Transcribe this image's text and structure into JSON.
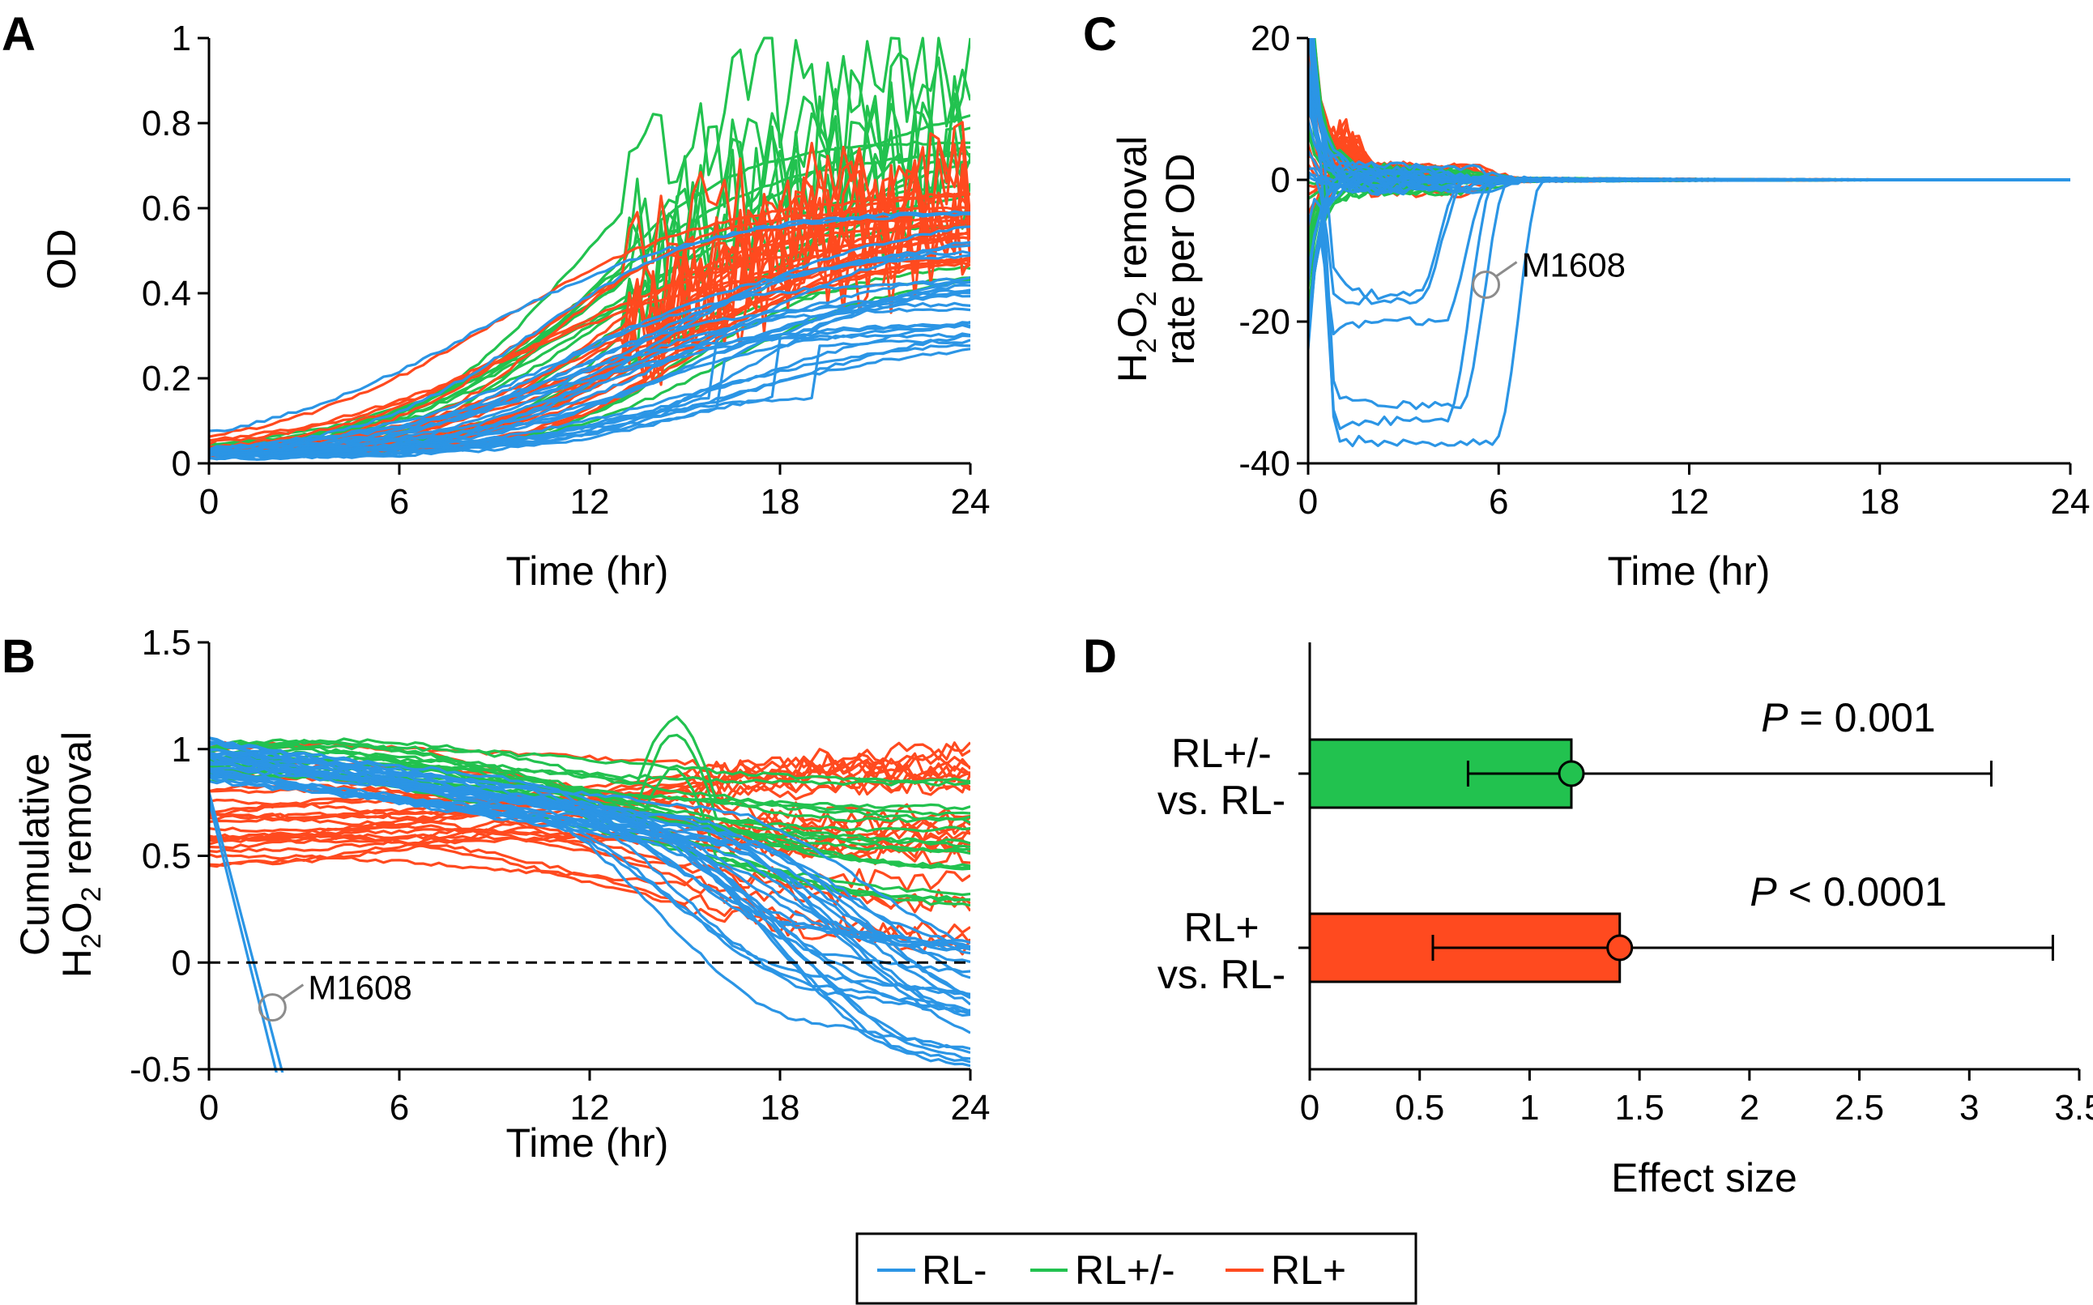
{
  "colors": {
    "rl_minus": "#2b95e5",
    "rl_mix": "#22c24f",
    "rl_plus": "#ff4a1f",
    "axis": "#000000",
    "callout": "#8c8c8c"
  },
  "legend": {
    "entries": [
      "RL-",
      "RL+/-",
      "RL+"
    ]
  },
  "panels": {
    "A": {
      "letter": "A",
      "xlabel": "Time (hr)",
      "ylabel": "OD"
    },
    "B": {
      "letter": "B",
      "xlabel": "Time (hr)",
      "ylabel_line1": "Cumulative",
      "ylabel_line2": "H",
      "ylabel_sub1": "2",
      "ylabel_mid": "O",
      "ylabel_sub2": "2",
      "ylabel_tail": " removal",
      "callout": "M1608"
    },
    "C": {
      "letter": "C",
      "xlabel": "Time (hr)",
      "ylabel_line1_h": "H",
      "ylabel_line1_sub1": "2",
      "ylabel_line1_o": "O",
      "ylabel_line1_sub2": "2",
      "ylabel_line1_tail": " removal",
      "ylabel_line2": "rate per OD",
      "callout": "M1608"
    },
    "D": {
      "letter": "D",
      "xlabel": "Effect size"
    }
  },
  "chart_data": [
    {
      "panel": "A",
      "type": "line",
      "xlim": [
        0,
        24
      ],
      "ylim": [
        0,
        1
      ],
      "x_ticks": [
        "0",
        "6",
        "12",
        "18",
        "24"
      ],
      "y_ticks": [
        "0",
        "0.2",
        "0.4",
        "0.6",
        "0.8",
        "1"
      ],
      "series": [
        {
          "name": "RL-",
          "curves": 26,
          "x": [
            0,
            3,
            6,
            9,
            12,
            15,
            18,
            21,
            24
          ],
          "y_range_at_24": [
            0.28,
            0.6
          ]
        },
        {
          "name": "RL+/-",
          "curves": 18,
          "x": [
            0,
            3,
            6,
            9,
            12,
            15,
            18,
            21,
            24
          ],
          "y_range_at_24": [
            0.42,
            0.92
          ]
        },
        {
          "name": "RL+",
          "curves": 26,
          "x": [
            0,
            3,
            6,
            9,
            12,
            15,
            18,
            21,
            24
          ],
          "y_range_at_24": [
            0.45,
            0.65
          ]
        }
      ]
    },
    {
      "panel": "B",
      "type": "line",
      "xlim": [
        0,
        24
      ],
      "ylim": [
        -0.5,
        1.5
      ],
      "x_ticks": [
        "0",
        "6",
        "12",
        "18",
        "24"
      ],
      "y_ticks": [
        "-0.5",
        "0",
        "0.5",
        "1",
        "1.5"
      ],
      "reference_line": 0,
      "series": [
        {
          "name": "RL-",
          "curves": 26,
          "y_range_at_0": [
            0.85,
            1.05
          ],
          "y_range_at_24": [
            -0.5,
            0.1
          ]
        },
        {
          "name": "RL+/-",
          "curves": 18,
          "y_range_at_0": [
            0.85,
            1.05
          ],
          "y_range_at_24": [
            0.2,
            0.95
          ]
        },
        {
          "name": "RL+",
          "curves": 26,
          "y_range_at_0": [
            0.45,
            1.05
          ],
          "y_range_at_24": [
            0.0,
            1.05
          ]
        }
      ]
    },
    {
      "panel": "C",
      "type": "line",
      "xlim": [
        0,
        24
      ],
      "ylim": [
        -40,
        20
      ],
      "x_ticks": [
        "0",
        "6",
        "12",
        "18",
        "24"
      ],
      "y_ticks": [
        "-40",
        "-20",
        "0",
        "20"
      ],
      "series": [
        {
          "name": "RL-",
          "curves": 26,
          "min_value": -40,
          "settles_to": 0
        },
        {
          "name": "RL+/-",
          "curves": 18,
          "settles_to": 0
        },
        {
          "name": "RL+",
          "curves": 26,
          "settles_to": 0
        }
      ]
    },
    {
      "panel": "D",
      "type": "bar",
      "orientation": "horizontal",
      "xlim": [
        0,
        3.5
      ],
      "x_ticks": [
        "0",
        "0.5",
        "1",
        "1.5",
        "2",
        "2.5",
        "3",
        "3.5"
      ],
      "categories": [
        {
          "label_line1": "RL+/-",
          "label_line2": "vs. RL-",
          "value": 1.19,
          "ci": [
            0.72,
            3.1
          ],
          "p_italic": "P",
          "p_rest": " = 0.001",
          "color": "#22c24f"
        },
        {
          "label_line1": "RL+",
          "label_line2": "vs. RL-",
          "value": 1.41,
          "ci": [
            0.56,
            3.38
          ],
          "p_italic": "P",
          "p_rest": " < 0.0001",
          "color": "#ff4a1f"
        }
      ]
    }
  ]
}
